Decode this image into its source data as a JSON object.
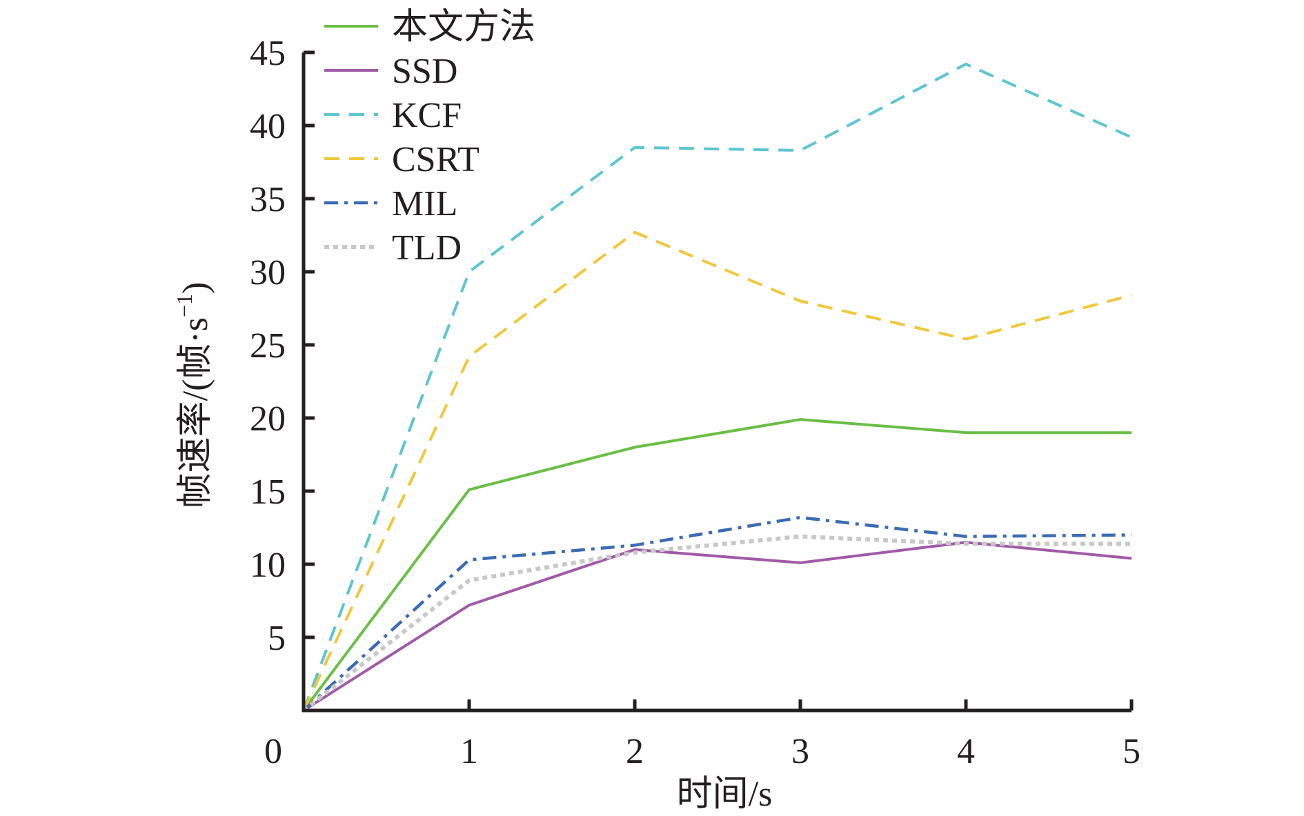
{
  "chart_data": {
    "type": "line",
    "title": "",
    "xlabel": "时间/s",
    "ylabel_main": "帧速率/(帧·s",
    "ylabel_sup": "−1",
    "ylabel_close": ")",
    "origin_label": "0",
    "x": [
      0,
      1,
      2,
      3,
      4,
      5
    ],
    "x_tick_labels": [
      "1",
      "2",
      "3",
      "4",
      "5"
    ],
    "y_tick_labels": [
      "5",
      "10",
      "15",
      "20",
      "25",
      "30",
      "35",
      "40",
      "45"
    ],
    "xlim": [
      0,
      5
    ],
    "ylim": [
      0,
      45
    ],
    "grid": false,
    "legend_position": "top-left",
    "series": [
      {
        "name": "本文方法",
        "values": [
          0,
          15.1,
          18.0,
          19.9,
          19.0,
          19.0
        ],
        "color": "#6abd45",
        "dash": "solid"
      },
      {
        "name": "SSD",
        "values": [
          0,
          7.2,
          11.0,
          10.1,
          11.5,
          10.4
        ],
        "color": "#a05aa6",
        "dash": "solid"
      },
      {
        "name": "KCF",
        "values": [
          0,
          30.0,
          38.5,
          38.3,
          44.2,
          39.2
        ],
        "color": "#5bc5d1",
        "dash": "dashed"
      },
      {
        "name": "CSRT",
        "values": [
          0,
          24.2,
          32.7,
          28.0,
          25.4,
          28.4
        ],
        "color": "#f0c73b",
        "dash": "dashed"
      },
      {
        "name": "MIL",
        "values": [
          0,
          10.3,
          11.3,
          13.2,
          11.9,
          12.0
        ],
        "color": "#3b6bb3",
        "dash": "dashdot"
      },
      {
        "name": "TLD",
        "values": [
          0,
          8.9,
          10.8,
          11.9,
          11.4,
          11.4
        ],
        "color": "#c8c8c8",
        "dash": "dotted"
      }
    ]
  }
}
